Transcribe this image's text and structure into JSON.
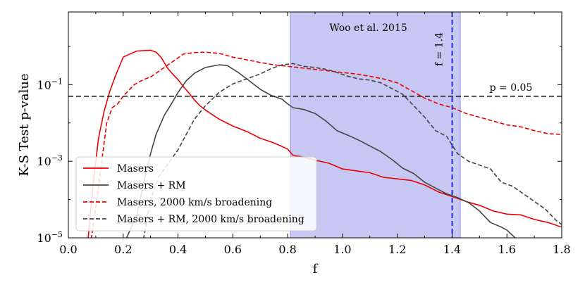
{
  "chart_data": {
    "type": "line",
    "xlabel": "f",
    "ylabel": "K-S Test p-value",
    "yscale": "log",
    "xlim": [
      0.0,
      1.8
    ],
    "ylim_log10": [
      -5,
      0.9
    ],
    "x_ticks": [
      0.0,
      0.2,
      0.4,
      0.6,
      0.8,
      1.0,
      1.2,
      1.4,
      1.6,
      1.8
    ],
    "x_tick_labels": [
      "0.0",
      "0.2",
      "0.4",
      "0.6",
      "0.8",
      "1.0",
      "1.2",
      "1.4",
      "1.6",
      "1.8"
    ],
    "y_ticks": [
      {
        "exp": -5,
        "base": "10",
        "sup": "−5"
      },
      {
        "exp": -3,
        "base": "10",
        "sup": "−3"
      },
      {
        "exp": -1,
        "base": "10",
        "sup": "−1"
      }
    ],
    "shaded_region": {
      "x": [
        0.81,
        1.43
      ],
      "label": "Woo et al. 2015",
      "color": "#0000cc"
    },
    "vline": {
      "x": 1.4,
      "label": "f = 1.4",
      "color": "#0000cc"
    },
    "hline": {
      "y": 0.05,
      "label": "p = 0.05",
      "color": "#000000"
    },
    "legend": {
      "placement": "lower-left"
    },
    "series": [
      {
        "name": "Masers",
        "color": "#ee0000",
        "dash": "solid",
        "points": [
          [
            0.07,
            -5.2
          ],
          [
            0.09,
            -3.6
          ],
          [
            0.11,
            -2.4
          ],
          [
            0.13,
            -1.7
          ],
          [
            0.15,
            -1.2
          ],
          [
            0.17,
            -0.8
          ],
          [
            0.2,
            -0.28
          ],
          [
            0.23,
            -0.18
          ],
          [
            0.25,
            -0.12
          ],
          [
            0.3,
            -0.1
          ],
          [
            0.32,
            -0.15
          ],
          [
            0.34,
            -0.3
          ],
          [
            0.36,
            -0.55
          ],
          [
            0.38,
            -0.72
          ],
          [
            0.4,
            -0.87
          ],
          [
            0.42,
            -1.05
          ],
          [
            0.44,
            -1.22
          ],
          [
            0.46,
            -1.4
          ],
          [
            0.48,
            -1.55
          ],
          [
            0.5,
            -1.66
          ],
          [
            0.52,
            -1.76
          ],
          [
            0.55,
            -1.9
          ],
          [
            0.6,
            -2.08
          ],
          [
            0.65,
            -2.22
          ],
          [
            0.7,
            -2.4
          ],
          [
            0.75,
            -2.52
          ],
          [
            0.8,
            -2.68
          ],
          [
            0.82,
            -2.85
          ],
          [
            0.85,
            -2.88
          ],
          [
            0.9,
            -2.97
          ],
          [
            0.95,
            -3.05
          ],
          [
            1.0,
            -3.2
          ],
          [
            1.05,
            -3.25
          ],
          [
            1.1,
            -3.3
          ],
          [
            1.15,
            -3.42
          ],
          [
            1.2,
            -3.46
          ],
          [
            1.25,
            -3.5
          ],
          [
            1.3,
            -3.62
          ],
          [
            1.35,
            -3.8
          ],
          [
            1.4,
            -3.92
          ],
          [
            1.45,
            -4.05
          ],
          [
            1.5,
            -4.15
          ],
          [
            1.55,
            -4.3
          ],
          [
            1.6,
            -4.38
          ],
          [
            1.65,
            -4.4
          ],
          [
            1.7,
            -4.52
          ],
          [
            1.75,
            -4.6
          ],
          [
            1.8,
            -4.72
          ]
        ]
      },
      {
        "name": "Masers + RM",
        "color": "#444444",
        "dash": "solid",
        "points": [
          [
            0.2,
            -5.2
          ],
          [
            0.25,
            -4.4
          ],
          [
            0.28,
            -3.4
          ],
          [
            0.3,
            -2.8
          ],
          [
            0.32,
            -2.3
          ],
          [
            0.35,
            -1.8
          ],
          [
            0.38,
            -1.45
          ],
          [
            0.4,
            -1.2
          ],
          [
            0.43,
            -0.9
          ],
          [
            0.46,
            -0.7
          ],
          [
            0.5,
            -0.55
          ],
          [
            0.55,
            -0.48
          ],
          [
            0.58,
            -0.5
          ],
          [
            0.62,
            -0.68
          ],
          [
            0.66,
            -0.9
          ],
          [
            0.7,
            -1.12
          ],
          [
            0.74,
            -1.28
          ],
          [
            0.78,
            -1.38
          ],
          [
            0.8,
            -1.5
          ],
          [
            0.82,
            -1.6
          ],
          [
            0.86,
            -1.65
          ],
          [
            0.9,
            -1.75
          ],
          [
            0.94,
            -1.95
          ],
          [
            0.98,
            -2.2
          ],
          [
            1.02,
            -2.32
          ],
          [
            1.06,
            -2.45
          ],
          [
            1.1,
            -2.6
          ],
          [
            1.14,
            -2.75
          ],
          [
            1.18,
            -2.95
          ],
          [
            1.22,
            -3.18
          ],
          [
            1.26,
            -3.32
          ],
          [
            1.3,
            -3.55
          ],
          [
            1.34,
            -3.7
          ],
          [
            1.38,
            -3.85
          ],
          [
            1.42,
            -3.95
          ],
          [
            1.46,
            -4.08
          ],
          [
            1.5,
            -4.3
          ],
          [
            1.54,
            -4.6
          ],
          [
            1.58,
            -4.72
          ],
          [
            1.6,
            -4.8
          ],
          [
            1.63,
            -5.0
          ],
          [
            1.65,
            -5.2
          ]
        ]
      },
      {
        "name": "Masers, 2000 km/s broadening",
        "color": "#ee0000",
        "dash": "dashed",
        "points": [
          [
            0.08,
            -5.2
          ],
          [
            0.1,
            -4.2
          ],
          [
            0.12,
            -3.1
          ],
          [
            0.14,
            -2.0
          ],
          [
            0.16,
            -1.6
          ],
          [
            0.18,
            -1.5
          ],
          [
            0.2,
            -1.3
          ],
          [
            0.22,
            -1.15
          ],
          [
            0.24,
            -1.0
          ],
          [
            0.26,
            -0.92
          ],
          [
            0.28,
            -0.85
          ],
          [
            0.3,
            -0.8
          ],
          [
            0.34,
            -0.6
          ],
          [
            0.38,
            -0.4
          ],
          [
            0.42,
            -0.2
          ],
          [
            0.46,
            -0.16
          ],
          [
            0.5,
            -0.15
          ],
          [
            0.55,
            -0.18
          ],
          [
            0.6,
            -0.28
          ],
          [
            0.65,
            -0.35
          ],
          [
            0.7,
            -0.42
          ],
          [
            0.75,
            -0.48
          ],
          [
            0.8,
            -0.52
          ],
          [
            0.85,
            -0.56
          ],
          [
            0.9,
            -0.6
          ],
          [
            0.95,
            -0.64
          ],
          [
            1.0,
            -0.68
          ],
          [
            1.05,
            -0.72
          ],
          [
            1.1,
            -0.78
          ],
          [
            1.15,
            -0.85
          ],
          [
            1.2,
            -0.95
          ],
          [
            1.25,
            -1.15
          ],
          [
            1.3,
            -1.35
          ],
          [
            1.35,
            -1.5
          ],
          [
            1.4,
            -1.6
          ],
          [
            1.45,
            -1.75
          ],
          [
            1.5,
            -1.85
          ],
          [
            1.55,
            -1.95
          ],
          [
            1.6,
            -2.05
          ],
          [
            1.65,
            -2.1
          ],
          [
            1.7,
            -2.2
          ],
          [
            1.75,
            -2.28
          ],
          [
            1.8,
            -2.3
          ]
        ]
      },
      {
        "name": "Masers + RM, 2000 km/s broadening",
        "color": "#444444",
        "dash": "dashed",
        "points": [
          [
            0.27,
            -5.2
          ],
          [
            0.3,
            -4.0
          ],
          [
            0.33,
            -3.4
          ],
          [
            0.37,
            -3.0
          ],
          [
            0.4,
            -2.7
          ],
          [
            0.43,
            -2.3
          ],
          [
            0.46,
            -1.9
          ],
          [
            0.5,
            -1.55
          ],
          [
            0.55,
            -1.2
          ],
          [
            0.6,
            -0.98
          ],
          [
            0.65,
            -0.85
          ],
          [
            0.7,
            -0.72
          ],
          [
            0.74,
            -0.58
          ],
          [
            0.78,
            -0.48
          ],
          [
            0.82,
            -0.45
          ],
          [
            0.86,
            -0.52
          ],
          [
            0.9,
            -0.55
          ],
          [
            0.94,
            -0.6
          ],
          [
            0.98,
            -0.68
          ],
          [
            1.02,
            -0.78
          ],
          [
            1.06,
            -0.85
          ],
          [
            1.1,
            -0.88
          ],
          [
            1.14,
            -0.95
          ],
          [
            1.18,
            -1.1
          ],
          [
            1.22,
            -1.25
          ],
          [
            1.26,
            -1.55
          ],
          [
            1.3,
            -1.85
          ],
          [
            1.34,
            -2.2
          ],
          [
            1.38,
            -2.35
          ],
          [
            1.42,
            -2.8
          ],
          [
            1.46,
            -3.0
          ],
          [
            1.5,
            -3.1
          ],
          [
            1.54,
            -3.2
          ],
          [
            1.58,
            -3.55
          ],
          [
            1.62,
            -3.65
          ],
          [
            1.66,
            -3.85
          ],
          [
            1.7,
            -4.05
          ],
          [
            1.74,
            -4.25
          ],
          [
            1.78,
            -4.55
          ],
          [
            1.8,
            -4.65
          ]
        ]
      }
    ]
  }
}
